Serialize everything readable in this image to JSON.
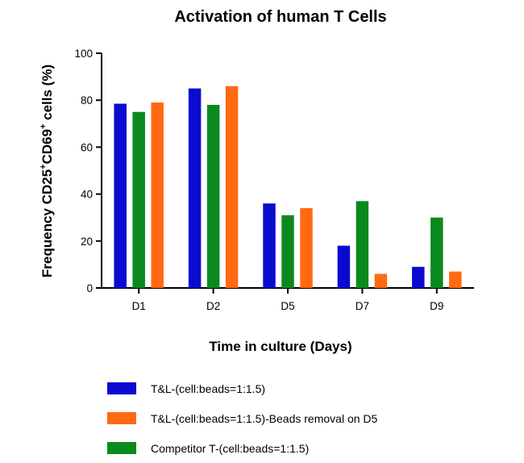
{
  "chart_data": {
    "type": "bar",
    "title": "Activation of human T Cells",
    "xlabel": "Time in culture (Days)",
    "ylabel": {
      "parts": [
        {
          "text": "Frequency CD25",
          "sup": false
        },
        {
          "text": "+",
          "sup": true
        },
        {
          "text": "CD69",
          "sup": false
        },
        {
          "text": "+",
          "sup": true
        },
        {
          "text": " cells (%)",
          "sup": false
        }
      ]
    },
    "categories": [
      "D1",
      "D2",
      "D5",
      "D7",
      "D9"
    ],
    "ylim": [
      0,
      100
    ],
    "yticks": [
      0,
      20,
      40,
      60,
      80,
      100
    ],
    "grid": false,
    "legend_position": "bottom",
    "series": [
      {
        "name": "T&L-(cell:beads=1:1.5)",
        "color": "#0b0bd0",
        "values": [
          78.5,
          85,
          36,
          18,
          9
        ]
      },
      {
        "name": "Competitor T-(cell:beads=1:1.5)",
        "color": "#0a8a1e",
        "values": [
          75,
          78,
          31,
          37,
          30
        ]
      },
      {
        "name": "T&L-(cell:beads=1:1.5)-Beads removal on D5",
        "color": "#ff6a13",
        "values": [
          79,
          86,
          34,
          6,
          7
        ]
      }
    ],
    "legend_order": [
      0,
      2,
      1
    ]
  }
}
